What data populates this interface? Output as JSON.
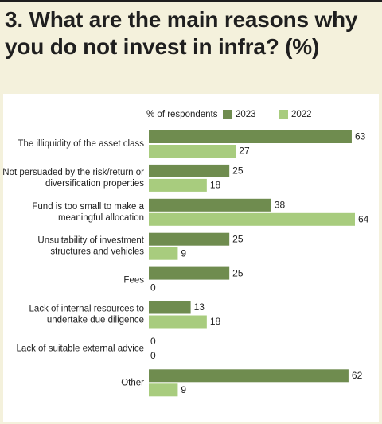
{
  "title": "3. What are the main reasons why you do not invest in infra? (%)",
  "colors": {
    "s2023": "#6f8c4f",
    "s2022": "#a8cc7e",
    "background": "#f4f1dc"
  },
  "chart_data": {
    "type": "bar",
    "orientation": "horizontal",
    "title": "3. What are the main reasons why you do not invest in infra? (%)",
    "legend_title": "% of respondents",
    "legend_placement": "top",
    "categories": [
      [
        "The illiquidity of the asset class"
      ],
      [
        "Not persuaded by the risk/return or",
        "diversification properties"
      ],
      [
        "Fund is too small to make a",
        "meaningful allocation"
      ],
      [
        "Unsuitability of investment",
        "structures and vehicles"
      ],
      [
        "Fees"
      ],
      [
        "Lack of internal resources to",
        "undertake due diligence"
      ],
      [
        "Lack of suitable external advice"
      ],
      [
        "Other"
      ]
    ],
    "series": [
      {
        "name": "2023",
        "values": [
          63,
          25,
          38,
          25,
          25,
          13,
          0,
          62
        ]
      },
      {
        "name": "2022",
        "values": [
          27,
          18,
          64,
          9,
          0,
          18,
          0,
          9
        ]
      }
    ],
    "xlim": [
      0,
      64
    ],
    "grid": false
  }
}
